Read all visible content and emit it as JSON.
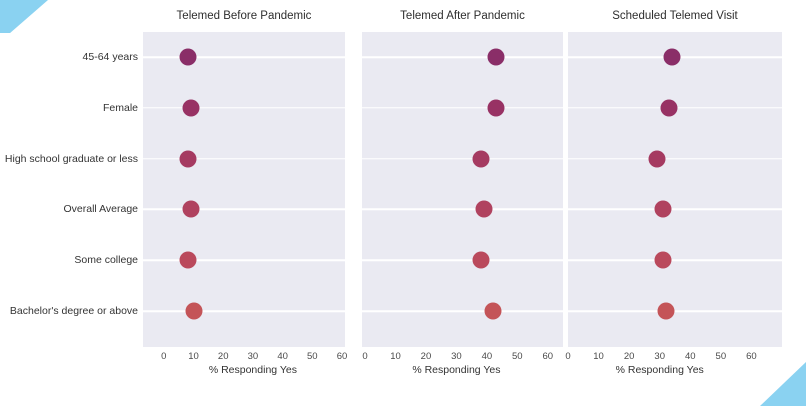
{
  "figure": {
    "background": "#ffffff",
    "corner_decoration_color": "#8ad2f1"
  },
  "chart_data": {
    "type": "scatter",
    "subtype": "dot-plot-small-multiples",
    "categories": [
      "45-64 years",
      "Female",
      "High school graduate or less",
      "Overall Average",
      "Some college",
      "Bachelor's degree or above"
    ],
    "xlabel": "% Responding Yes",
    "x_ticks": [
      0,
      10,
      20,
      30,
      40,
      50,
      60
    ],
    "panel_bg": "#eaeaf2",
    "grid": "horizontal white line per category, no vertical gridlines",
    "legend": "none",
    "point_colors_by_category": [
      "#8a2e68",
      "#983264",
      "#a53a61",
      "#b0425f",
      "#ba495c",
      "#c45458"
    ],
    "panels": [
      {
        "title": "Telemed Before Pandemic",
        "values": [
          8,
          9,
          8,
          9,
          8,
          10
        ],
        "x_domain": [
          -7,
          61
        ]
      },
      {
        "title": "Telemed After Pandemic",
        "values": [
          43,
          43,
          38,
          39,
          38,
          42
        ],
        "x_domain": [
          -1,
          65
        ]
      },
      {
        "title": "Scheduled Telemed Visit",
        "values": [
          34,
          33,
          29,
          31,
          31,
          32
        ],
        "x_domain": [
          0,
          70
        ]
      }
    ]
  }
}
